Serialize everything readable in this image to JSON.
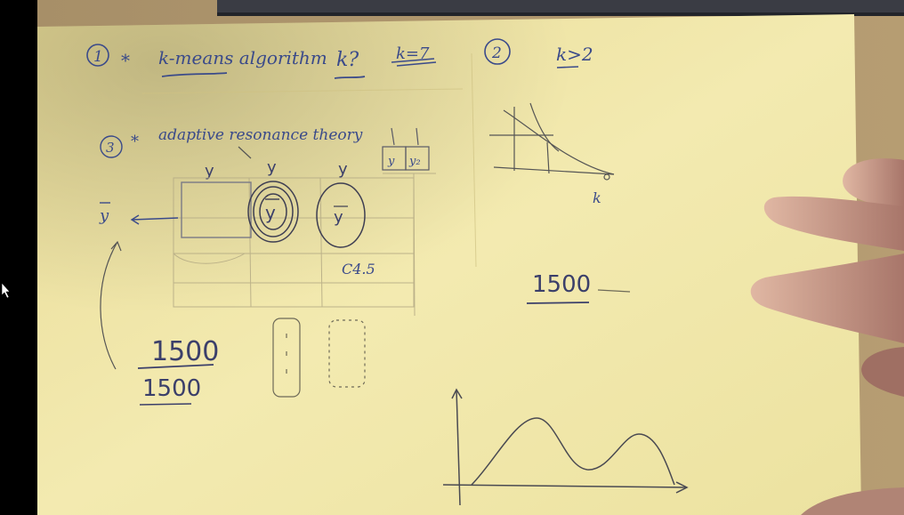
{
  "notes": {
    "item1_num": "1",
    "item1_star": "*",
    "item1_text": "k-means algorithm",
    "item1_k": "k?",
    "item1_k_eq": "k=7",
    "item2_num": "2",
    "item2_text": "k>2",
    "item3_num": "3",
    "item3_star": "*",
    "item3_text": "adaptive resonance theory",
    "grid_header_1": "y",
    "grid_header_2": "y",
    "grid_header_3": "y",
    "small_box_1": "y",
    "small_box_2": "y₂",
    "circle_1_label": "y",
    "circle_2_label": "y",
    "side_label": "y",
    "c45_label": "C4.5",
    "fraction_top": "1500",
    "fraction_bottom": "1500",
    "elbow_axis_label": "k",
    "right_number": "1500"
  },
  "colors": {
    "paper": "#f1e7a8",
    "ink": "#3a4a8a",
    "pencil": "#6d6a55",
    "background": "#000000"
  }
}
